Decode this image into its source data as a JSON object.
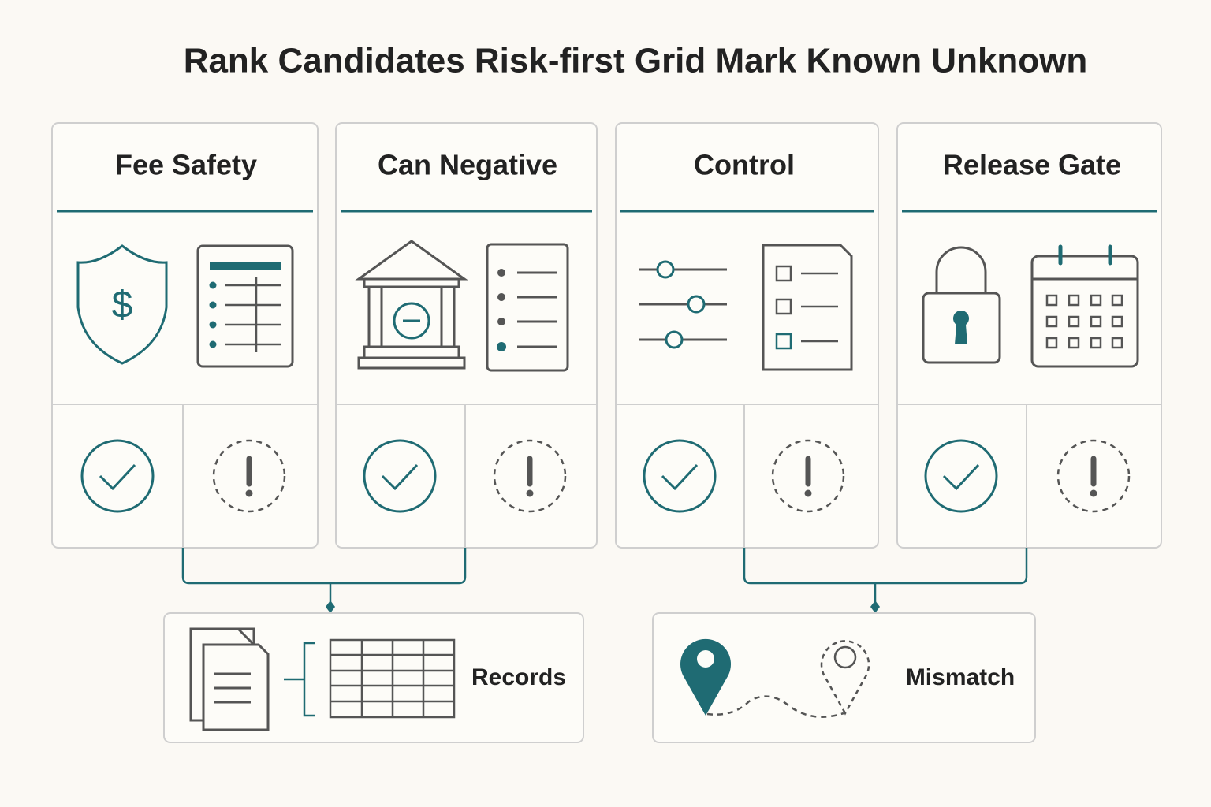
{
  "title": "Rank Candidates Risk-first Grid Mark Known Unknown",
  "columns": [
    {
      "label": "Fee Safety"
    },
    {
      "label": "Can Negative"
    },
    {
      "label": "Control"
    },
    {
      "label": "Release Gate"
    }
  ],
  "outputs": [
    {
      "label": "Records"
    },
    {
      "label": "Mismatch"
    }
  ]
}
